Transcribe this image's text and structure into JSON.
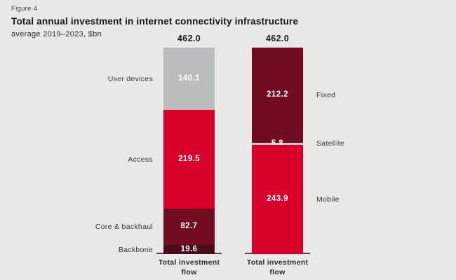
{
  "header": {
    "figure_label": "Figure 4",
    "title": "Total annual investment in internet connectivity infrastructure",
    "subtitle": "average 2019–2023, $bn"
  },
  "colors": {
    "background": "#e8e8e6",
    "bright_red": "#d8002b",
    "dark_maroon": "#720c22",
    "darkest_maroon": "#490d1a",
    "gray": "#b9bdbd",
    "light_gray_band": "#c9cccb",
    "axis": "#4a4a4a",
    "value_text": "#ffffff"
  },
  "chart_data": {
    "type": "bar",
    "subtype": "stacked-vertical",
    "unit": "$bn",
    "total": 462.0,
    "grid": false,
    "legend": "none (segments labelled beside bars)",
    "bars": [
      {
        "name": "investment-by-network-layer",
        "x_label": "Total investment flow",
        "total": 462.0,
        "label_side": "left",
        "segments_top_to_bottom": [
          {
            "label": "User devices",
            "value": 140.1,
            "color": "#b9bdbd"
          },
          {
            "label": "Access",
            "value": 219.5,
            "color": "#d8002b"
          },
          {
            "label": "Core & backhaul",
            "value": 82.7,
            "color": "#720c22"
          },
          {
            "label": "Backbone",
            "value": 19.6,
            "color": "#490d1a"
          }
        ]
      },
      {
        "name": "investment-by-technology",
        "x_label": "Total investment flow",
        "total": 462.0,
        "label_side": "right",
        "segments_top_to_bottom": [
          {
            "label": "Fixed",
            "value": 212.2,
            "color": "#720c22"
          },
          {
            "label": "Satellite",
            "value": 5.8,
            "color": "#c9cccb"
          },
          {
            "label": "Mobile",
            "value": 243.9,
            "color": "#d8002b"
          }
        ]
      }
    ]
  }
}
